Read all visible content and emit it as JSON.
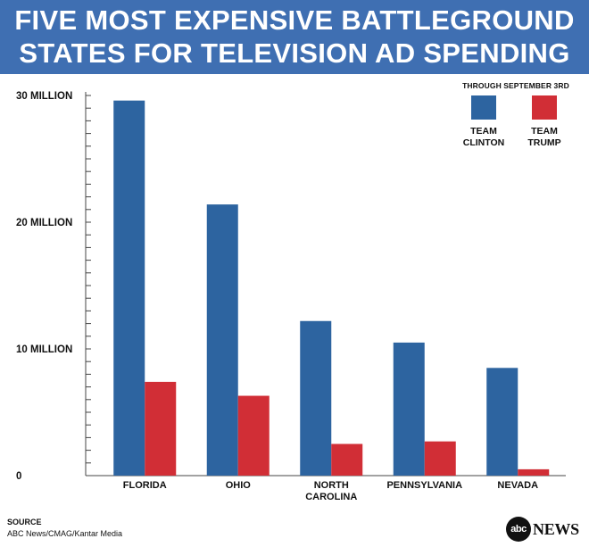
{
  "header": {
    "title_line1": "FIVE MOST EXPENSIVE BATTLEGROUND",
    "title_line2": "STATES FOR TELEVISION AD SPENDING",
    "background": "#3f6fb2"
  },
  "legend": {
    "heading": "THROUGH SEPTEMBER 3RD",
    "items": [
      {
        "label": "TEAM\nCLINTON",
        "color": "#2d64a0"
      },
      {
        "label": "TEAM\nTRUMP",
        "color": "#d12e36"
      }
    ]
  },
  "chart_data": {
    "type": "bar",
    "categories": [
      "FLORIDA",
      "OHIO",
      "NORTH\nCAROLINA",
      "PENNSYLVANIA",
      "NEVADA"
    ],
    "series": [
      {
        "name": "TEAM CLINTON",
        "color": "#2d64a0",
        "values": [
          29.6,
          21.4,
          12.2,
          10.5,
          8.5
        ]
      },
      {
        "name": "TEAM TRUMP",
        "color": "#d12e36",
        "values": [
          7.4,
          6.3,
          2.5,
          2.7,
          0.5
        ]
      }
    ],
    "ylim": [
      0,
      30
    ],
    "yticks": [
      {
        "value": 30,
        "label": "30 MILLION"
      },
      {
        "value": 20,
        "label": "20 MILLION"
      },
      {
        "value": 10,
        "label": "10 MILLION"
      },
      {
        "value": 0,
        "label": "0"
      }
    ],
    "minor_tick_step": 1,
    "legend_position": "top-right",
    "grid": false
  },
  "source": {
    "title": "SOURCE",
    "text": "ABC News/CMAG/Kantar Media"
  },
  "logo": {
    "mark": "abc",
    "text": "NEWS"
  }
}
